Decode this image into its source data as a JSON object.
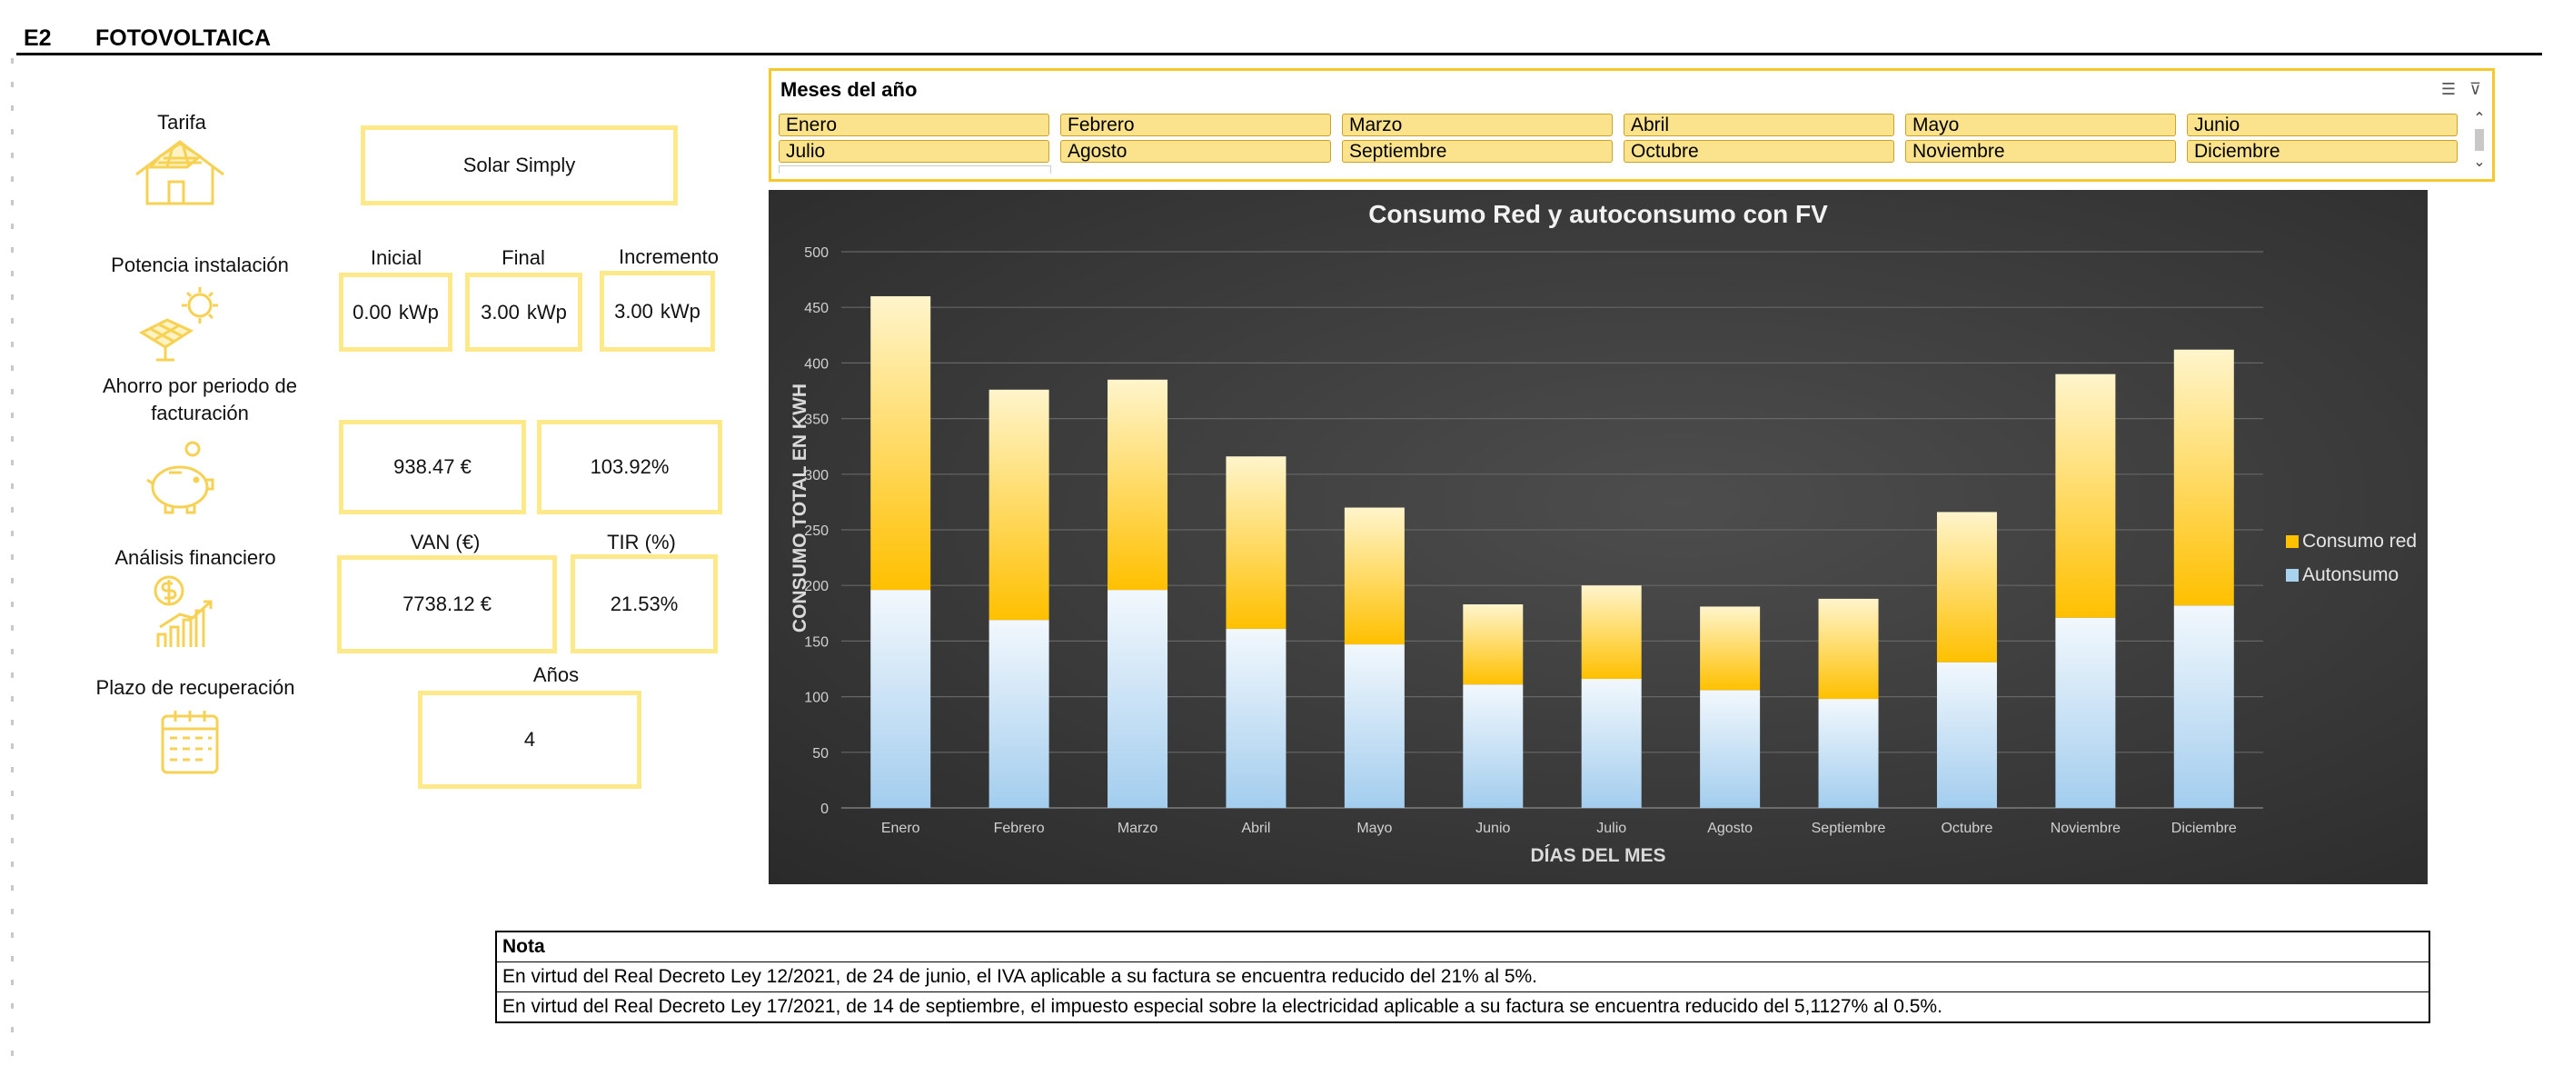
{
  "header": {
    "code": "E2",
    "title": "FOTOVOLTAICA"
  },
  "tarifa": {
    "label": "Tarifa",
    "value": "Solar Simply"
  },
  "potencia": {
    "label": "Potencia instalación",
    "inicial_header": "Inicial",
    "final_header": "Final",
    "incremento_header": "Incremento",
    "inicial": "0.00",
    "final": "3.00",
    "incremento": "3.00",
    "unit": "kWp"
  },
  "ahorro": {
    "label_line1": "Ahorro por periodo de",
    "label_line2": "facturación",
    "amount": "938.47 €",
    "percent": "103.92%"
  },
  "financiero": {
    "label": "Análisis financiero",
    "van_header": "VAN (€)",
    "tir_header": "TIR (%)",
    "van": "7738.12 €",
    "tir": "21.53%"
  },
  "plazo": {
    "label": "Plazo de recuperación",
    "anos_header": "Años",
    "anos": "4"
  },
  "slicer": {
    "title": "Meses del año",
    "items": [
      "Enero",
      "Febrero",
      "Marzo",
      "Abril",
      "Mayo",
      "Junio",
      "Julio",
      "Agosto",
      "Septiembre",
      "Octubre",
      "Noviembre",
      "Diciembre"
    ]
  },
  "chart_data": {
    "type": "bar",
    "stacked": true,
    "title": "Consumo Red y autoconsumo con FV",
    "xlabel": "DÍAS DEL MES",
    "ylabel": "CONSUMO TOTAL EN KWH",
    "ylim": [
      0,
      500
    ],
    "yticks": [
      "0",
      "50",
      "100",
      "150",
      "200",
      "250",
      "300",
      "350",
      "400",
      "450",
      "500"
    ],
    "categories": [
      "Enero",
      "Febrero",
      "Marzo",
      "Abril",
      "Mayo",
      "Junio",
      "Julio",
      "Agosto",
      "Septiembre",
      "Octubre",
      "Noviembre",
      "Diciembre"
    ],
    "series": [
      {
        "name": "Autonsumo",
        "values": [
          196,
          169,
          196,
          161,
          147,
          111,
          116,
          106,
          98,
          131,
          171,
          182
        ]
      },
      {
        "name": "Consumo red",
        "values": [
          264,
          207,
          189,
          155,
          123,
          72,
          84,
          75,
          90,
          135,
          219,
          230
        ]
      }
    ],
    "legend": [
      "Consumo red",
      "Autonsumo"
    ],
    "colors": {
      "autonsumo": "#a9d2ef",
      "consumo_red": "#ffc000",
      "background": "#3a3a3a",
      "grid": "#6a6a6a"
    }
  },
  "nota": {
    "header": "Nota",
    "lines": [
      "En virtud del Real Decreto Ley 12/2021, de 24 de junio, el IVA aplicable a su factura se encuentra reducido del 21% al 5%.",
      "En virtud del Real Decreto Ley 17/2021, de  14 de septiembre, el impuesto especial sobre la electricidad aplicable a su factura se encuentra reducido del 5,1127% al 0.5%."
    ]
  }
}
